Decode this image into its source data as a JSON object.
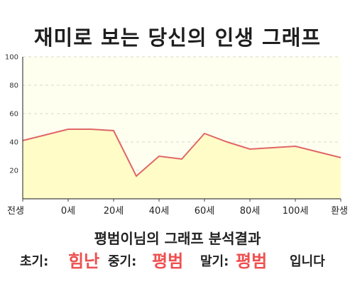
{
  "page_title": "재미로 보는 당신의 인생 그래프",
  "result": {
    "title": "평범이님의 그래프 분석결과",
    "early_label": "초기:",
    "early_value": "힘난",
    "mid_label": "중기:",
    "mid_value": "평범",
    "late_label": "말기:",
    "late_value": "평범",
    "suffix": "입니다"
  },
  "colors": {
    "line": "#e06666",
    "fill": "#fffcc8",
    "plot_bg": "#fffff0",
    "accent": "#ef4f4f"
  },
  "chart_data": {
    "type": "area",
    "title": "재미로 보는 당신의 인생 그래프",
    "xlabel": "",
    "ylabel": "",
    "ylim": [
      0,
      100
    ],
    "y_ticks": [
      20,
      40,
      60,
      80,
      100
    ],
    "x_tick_labels": [
      "전생",
      "0세",
      "20세",
      "40세",
      "60세",
      "80세",
      "100세",
      "환생"
    ],
    "grid": true,
    "series": [
      {
        "points": [
          {
            "x": -20,
            "y": 41
          },
          {
            "x": 0,
            "y": 49
          },
          {
            "x": 5,
            "y": 49
          },
          {
            "x": 10,
            "y": 49
          },
          {
            "x": 20,
            "y": 48
          },
          {
            "x": 30,
            "y": 16
          },
          {
            "x": 40,
            "y": 30
          },
          {
            "x": 50,
            "y": 28
          },
          {
            "x": 60,
            "y": 46
          },
          {
            "x": 70,
            "y": 40
          },
          {
            "x": 80,
            "y": 35
          },
          {
            "x": 90,
            "y": 36
          },
          {
            "x": 100,
            "y": 37
          },
          {
            "x": 120,
            "y": 29
          }
        ]
      }
    ]
  }
}
